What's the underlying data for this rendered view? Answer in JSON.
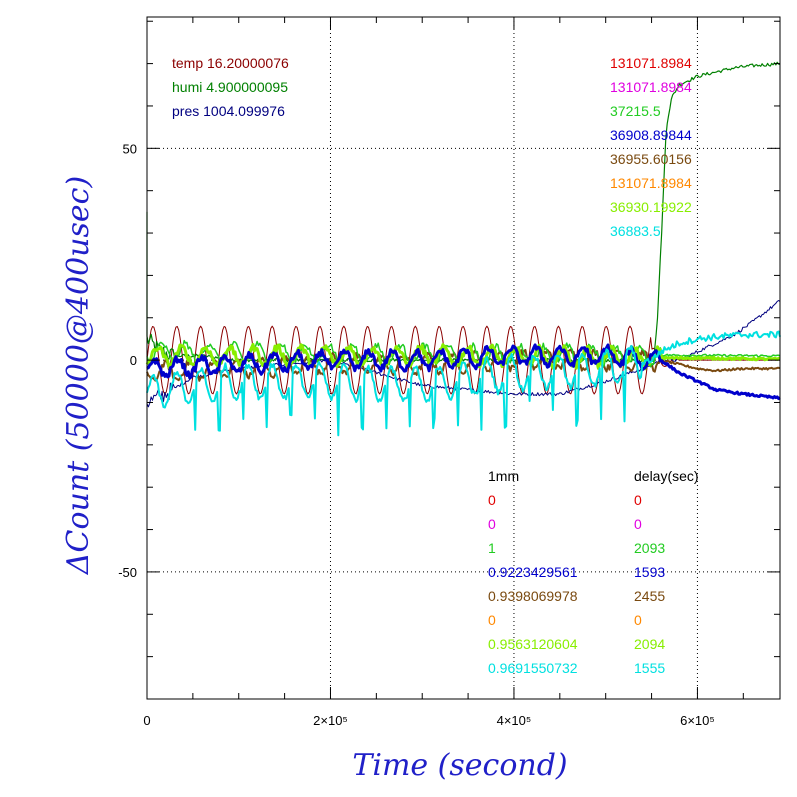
{
  "chart_data": {
    "type": "line",
    "xlabel": "Time (second)",
    "ylabel": "ΔCount (50000@400usec)",
    "xlim": [
      0,
      690000
    ],
    "ylim": [
      -80,
      81
    ],
    "grid": true,
    "x_ticks": [
      {
        "value": 0,
        "label": "0"
      },
      {
        "value": 200000,
        "label": "2×10⁵"
      },
      {
        "value": 400000,
        "label": "4×10⁵"
      },
      {
        "value": 600000,
        "label": "6×10⁵"
      }
    ],
    "y_ticks": [
      {
        "value": 50,
        "label": "50"
      },
      {
        "value": 0,
        "label": "0"
      },
      {
        "value": -50,
        "label": "-50"
      }
    ],
    "env_labels": [
      {
        "text": "temp 16.20000076",
        "color": "#8b0000"
      },
      {
        "text": "humi 4.900000095",
        "color": "#008000"
      },
      {
        "text": "pres 1004.099976",
        "color": "#000080"
      }
    ],
    "channel_values": [
      {
        "text": "131071.8984",
        "color": "#e00000"
      },
      {
        "text": "131071.8984",
        "color": "#e000e0"
      },
      {
        "text": "37215.5",
        "color": "#22cc22"
      },
      {
        "text": "36908.89844",
        "color": "#0000cc"
      },
      {
        "text": "36955.60156",
        "color": "#7a4a10"
      },
      {
        "text": "131071.8984",
        "color": "#ff8800"
      },
      {
        "text": "36930.19922",
        "color": "#88ee00"
      },
      {
        "text": "36883.5",
        "color": "#00e0e0"
      }
    ],
    "table": {
      "headers": [
        "1mm",
        "delay(sec)"
      ],
      "rows": [
        {
          "mm": "0",
          "delay": "0",
          "color": "#e00000"
        },
        {
          "mm": "0",
          "delay": "0",
          "color": "#e000e0"
        },
        {
          "mm": "1",
          "delay": "2093",
          "color": "#22cc22"
        },
        {
          "mm": "0.9223429561",
          "delay": "1593",
          "color": "#0000cc"
        },
        {
          "mm": "0.9398069978",
          "delay": "2455",
          "color": "#7a4a10"
        },
        {
          "mm": "0",
          "delay": "0",
          "color": "#ff8800"
        },
        {
          "mm": "0.9563120604",
          "delay": "2094",
          "color": "#88ee00"
        },
        {
          "mm": "0.9691550732",
          "delay": "1555",
          "color": "#00e0e0"
        }
      ]
    },
    "series": [
      {
        "color": "#8b0000",
        "width": 1,
        "kind": "temp",
        "x": [
          0,
          560000,
          690000
        ],
        "y": [
          0,
          0,
          0
        ],
        "amplitude": 8,
        "period": 26000
      },
      {
        "color": "#008000",
        "width": 1.2,
        "kind": "humi",
        "x": [
          0,
          15000,
          30000,
          60000,
          100000,
          200000,
          300000,
          400000,
          500000,
          552000,
          556000,
          562000,
          566000,
          572000,
          580000,
          600000,
          620000,
          640000,
          660000,
          690000
        ],
        "y": [
          5,
          2,
          1,
          1,
          0,
          0,
          0,
          0,
          0,
          0,
          8,
          35,
          55,
          62,
          65,
          67,
          68,
          69,
          69.5,
          70
        ]
      },
      {
        "color": "#000080",
        "width": 1,
        "kind": "pres",
        "x": [
          0,
          20000,
          50000,
          100000,
          150000,
          200000,
          250000,
          300000,
          350000,
          400000,
          450000,
          500000,
          540000,
          560000,
          580000,
          600000,
          620000,
          640000,
          660000,
          690000
        ],
        "y": [
          -10,
          -8,
          -4,
          -2,
          -1,
          0,
          -3,
          -6,
          -7,
          -8,
          -8,
          -5,
          -2,
          0,
          0,
          2,
          4,
          6,
          9,
          14
        ]
      },
      {
        "color": "#7a4a10",
        "width": 2,
        "kind": "noise",
        "x": [
          0,
          100000,
          200000,
          300000,
          400000,
          500000,
          550000,
          560000,
          580000,
          600000,
          620000,
          650000,
          690000
        ],
        "y": [
          -3,
          -2,
          -1,
          -1,
          0,
          0,
          0,
          0,
          -1,
          -2,
          -2.5,
          -2,
          -2
        ]
      },
      {
        "color": "#22cc22",
        "width": 1.5,
        "kind": "noise",
        "x": [
          0,
          690000
        ],
        "y": [
          2,
          1
        ]
      },
      {
        "color": "#88ee00",
        "width": 3,
        "kind": "noise",
        "x": [
          0,
          300000,
          560000,
          600000,
          690000
        ],
        "y": [
          1,
          1,
          0.5,
          0.5,
          0.2
        ]
      },
      {
        "color": "#0000cc",
        "width": 3,
        "kind": "noise",
        "x": [
          0,
          100000,
          200000,
          300000,
          400000,
          500000,
          550000,
          560000,
          580000,
          600000,
          620000,
          650000,
          690000
        ],
        "y": [
          -2,
          -1,
          0,
          0,
          1,
          1,
          0,
          0,
          -3,
          -5,
          -7,
          -8,
          -9
        ]
      },
      {
        "color": "#00e0e0",
        "width": 2,
        "kind": "spiky",
        "x": [
          0,
          20000,
          100000,
          200000,
          300000,
          400000,
          500000,
          550000,
          560000,
          580000,
          600000,
          620000,
          650000,
          690000
        ],
        "y": [
          -8,
          -7,
          -5,
          -5,
          -6,
          -3,
          -2,
          0,
          2,
          4,
          5,
          5.5,
          6,
          6
        ]
      }
    ]
  }
}
